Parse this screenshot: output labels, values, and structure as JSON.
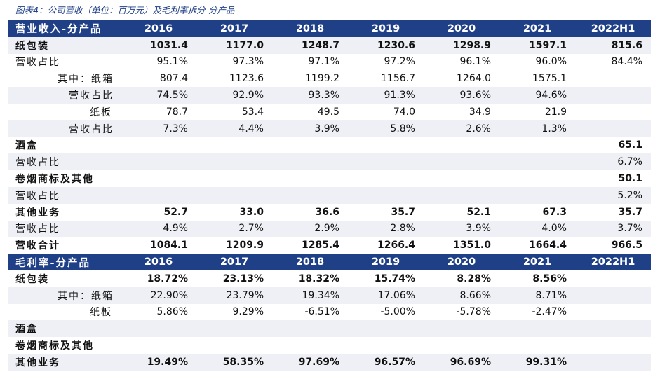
{
  "caption": "图表4：公司营收（单位：百万元）及毛利率拆分-分产品",
  "revenue": {
    "header": {
      "label": "营业收入-分产品",
      "years": [
        "2016",
        "2017",
        "2018",
        "2019",
        "2020",
        "2021",
        "2022H1"
      ]
    },
    "rows": [
      {
        "label": "纸包装",
        "values": [
          "1031.4",
          "1177.0",
          "1248.7",
          "1230.6",
          "1298.9",
          "1597.1",
          "815.6"
        ]
      },
      {
        "label": "营收占比",
        "values": [
          "95.1%",
          "97.3%",
          "97.1%",
          "97.2%",
          "96.1%",
          "96.0%",
          "84.4%"
        ]
      },
      {
        "label": "其中：纸箱",
        "values": [
          "807.4",
          "1123.6",
          "1199.2",
          "1156.7",
          "1264.0",
          "1575.1",
          ""
        ]
      },
      {
        "label": "营收占比",
        "values": [
          "74.5%",
          "92.9%",
          "93.3%",
          "91.3%",
          "93.6%",
          "94.6%",
          ""
        ]
      },
      {
        "label": "纸板",
        "values": [
          "78.7",
          "53.4",
          "49.5",
          "74.0",
          "34.9",
          "21.9",
          ""
        ]
      },
      {
        "label": "营收占比",
        "values": [
          "7.3%",
          "4.4%",
          "3.9%",
          "5.8%",
          "2.6%",
          "1.3%",
          ""
        ]
      },
      {
        "label": "酒盒",
        "values": [
          "",
          "",
          "",
          "",
          "",
          "",
          "65.1"
        ]
      },
      {
        "label": "营收占比",
        "values": [
          "",
          "",
          "",
          "",
          "",
          "",
          "6.7%"
        ]
      },
      {
        "label": "卷烟商标及其他",
        "values": [
          "",
          "",
          "",
          "",
          "",
          "",
          "50.1"
        ]
      },
      {
        "label": "营收占比",
        "values": [
          "",
          "",
          "",
          "",
          "",
          "",
          "5.2%"
        ]
      },
      {
        "label": "其他业务",
        "values": [
          "52.7",
          "33.0",
          "36.6",
          "35.7",
          "52.1",
          "67.3",
          "35.7"
        ]
      },
      {
        "label": "营收占比",
        "values": [
          "4.9%",
          "2.7%",
          "2.9%",
          "2.8%",
          "3.9%",
          "4.0%",
          "3.7%"
        ]
      },
      {
        "label": "营收合计",
        "values": [
          "1084.1",
          "1209.9",
          "1285.4",
          "1266.4",
          "1351.0",
          "1664.4",
          "966.5"
        ]
      }
    ]
  },
  "margin": {
    "header": {
      "label": "毛利率-分产品",
      "years": [
        "2016",
        "2017",
        "2018",
        "2019",
        "2020",
        "2021",
        "2022H1"
      ]
    },
    "rows": [
      {
        "label": "纸包装",
        "values": [
          "18.72%",
          "23.13%",
          "18.32%",
          "15.74%",
          "8.28%",
          "8.56%",
          ""
        ]
      },
      {
        "label": "其中：纸箱",
        "values": [
          "22.90%",
          "23.79%",
          "19.34%",
          "17.06%",
          "8.66%",
          "8.71%",
          ""
        ]
      },
      {
        "label": "纸板",
        "values": [
          "5.86%",
          "9.29%",
          "-6.51%",
          "-5.00%",
          "-5.78%",
          "-2.47%",
          ""
        ]
      },
      {
        "label": "酒盒",
        "values": [
          "",
          "",
          "",
          "",
          "",
          "",
          ""
        ]
      },
      {
        "label": "卷烟商标及其他",
        "values": [
          "",
          "",
          "",
          "",
          "",
          "",
          ""
        ]
      },
      {
        "label": "其他业务",
        "values": [
          "19.49%",
          "58.35%",
          "97.69%",
          "96.57%",
          "96.69%",
          "99.31%",
          ""
        ]
      }
    ]
  }
}
